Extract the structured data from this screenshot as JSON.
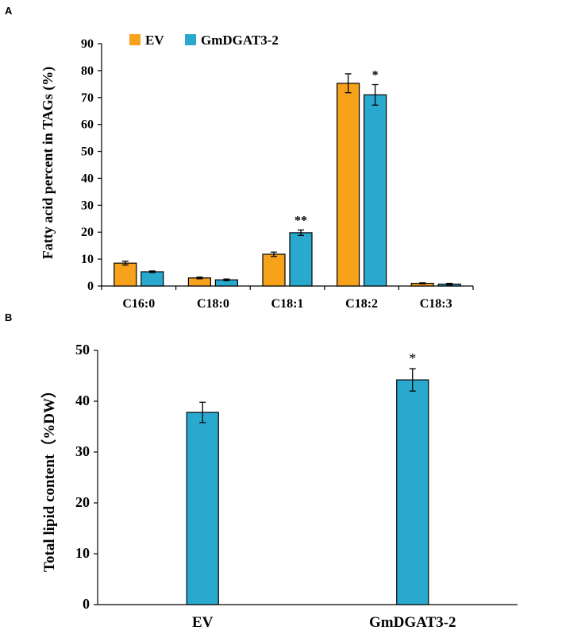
{
  "panels": {
    "a_label": "A",
    "b_label": "B"
  },
  "colors": {
    "ev": "#F7A21B",
    "gm": "#2AA9CE",
    "edge": "#000000"
  },
  "chart_data": [
    {
      "type": "bar",
      "panel": "A",
      "ylabel": "Fatty acid percent in TAGs (%)",
      "xlabel": "",
      "ylim": [
        0,
        90
      ],
      "yticks": [
        0,
        10,
        20,
        30,
        40,
        50,
        60,
        70,
        80,
        90
      ],
      "categories": [
        "C16:0",
        "C18:0",
        "C18:1",
        "C18:2",
        "C18:3"
      ],
      "legend_position": "top-left",
      "grid": false,
      "series": [
        {
          "name": "EV",
          "color": "#F7A21B",
          "values": [
            8.5,
            3.0,
            11.8,
            75.3,
            1.0
          ],
          "errors": [
            0.7,
            0.3,
            0.8,
            3.5,
            0.2
          ],
          "annotations": [
            "",
            "",
            "",
            "",
            ""
          ]
        },
        {
          "name": "GmDGAT3-2",
          "color": "#2AA9CE",
          "values": [
            5.3,
            2.3,
            19.8,
            71.0,
            0.7
          ],
          "errors": [
            0.3,
            0.3,
            1.0,
            3.8,
            0.3
          ],
          "annotations": [
            "",
            "",
            "**",
            "*",
            ""
          ]
        }
      ]
    },
    {
      "type": "bar",
      "panel": "B",
      "ylabel": "Total lipid content（%DW）",
      "xlabel": "",
      "ylim": [
        0,
        50
      ],
      "yticks": [
        0,
        10,
        20,
        30,
        40,
        50
      ],
      "categories": [
        "EV",
        "GmDGAT3-2"
      ],
      "grid": false,
      "series": [
        {
          "color": "#2AA9CE",
          "values": [
            37.8,
            44.2
          ],
          "errors": [
            2.0,
            2.2
          ],
          "annotations": [
            "",
            "*"
          ]
        }
      ]
    }
  ]
}
